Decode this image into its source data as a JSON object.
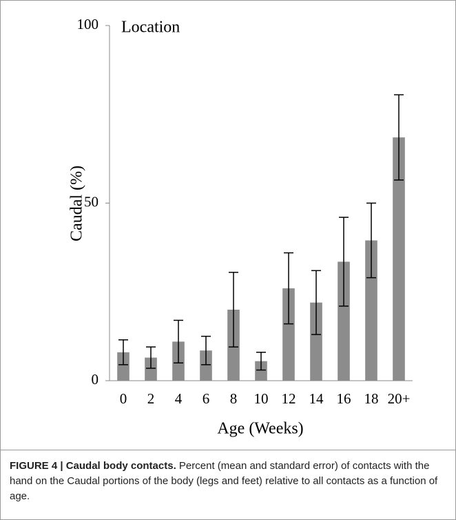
{
  "chart_data": {
    "type": "bar",
    "title": "Location",
    "xlabel": "Age (Weeks)",
    "ylabel": "Caudal (%)",
    "categories": [
      "0",
      "2",
      "4",
      "6",
      "8",
      "10",
      "12",
      "14",
      "16",
      "18",
      "20+"
    ],
    "values": [
      8,
      6.5,
      11,
      8.5,
      20,
      5.5,
      26,
      22,
      33.5,
      39.5,
      68.5
    ],
    "errors": [
      3.5,
      3,
      6,
      4,
      10.5,
      2.5,
      10,
      9,
      12.5,
      10.5,
      12
    ],
    "color": "#8c8c8c",
    "ylim": [
      0,
      100
    ],
    "yticks": [
      0,
      50,
      100
    ],
    "grid": false
  },
  "caption": {
    "label": "FIGURE 4 | Caudal body contacts.",
    "text": " Percent (mean and standard error) of contacts with the hand on the Caudal portions of the body (legs and feet) relative to all contacts as a function of age."
  }
}
